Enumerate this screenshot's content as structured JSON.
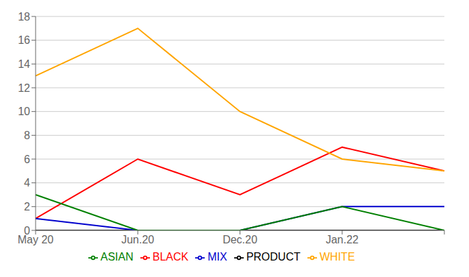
{
  "chart_data": {
    "type": "line",
    "categories": [
      "May 20",
      "Jun.20",
      "Dec.20",
      "Jan.22",
      null
    ],
    "series": [
      {
        "name": "BLACK",
        "color": "#FF0000",
        "values": [
          1,
          6,
          3,
          7,
          5
        ]
      },
      {
        "name": "WHITE",
        "color": "#FFA500",
        "values": [
          13,
          17,
          10,
          6,
          5
        ]
      },
      {
        "name": "PRODUCT",
        "color": "#000000",
        "values": [
          0,
          0,
          0,
          0,
          0
        ]
      },
      {
        "name": "MIX",
        "color": "#0000CD",
        "values": [
          1,
          0,
          0,
          2,
          2
        ]
      },
      {
        "name": "ASIAN",
        "color": "#008000",
        "values": [
          3,
          0,
          0,
          2,
          0
        ]
      }
    ],
    "ylim": [
      0,
      18
    ],
    "yticks": [
      0,
      2,
      4,
      6,
      8,
      10,
      12,
      14,
      16,
      18
    ],
    "grid": true,
    "legend": "bottom"
  }
}
